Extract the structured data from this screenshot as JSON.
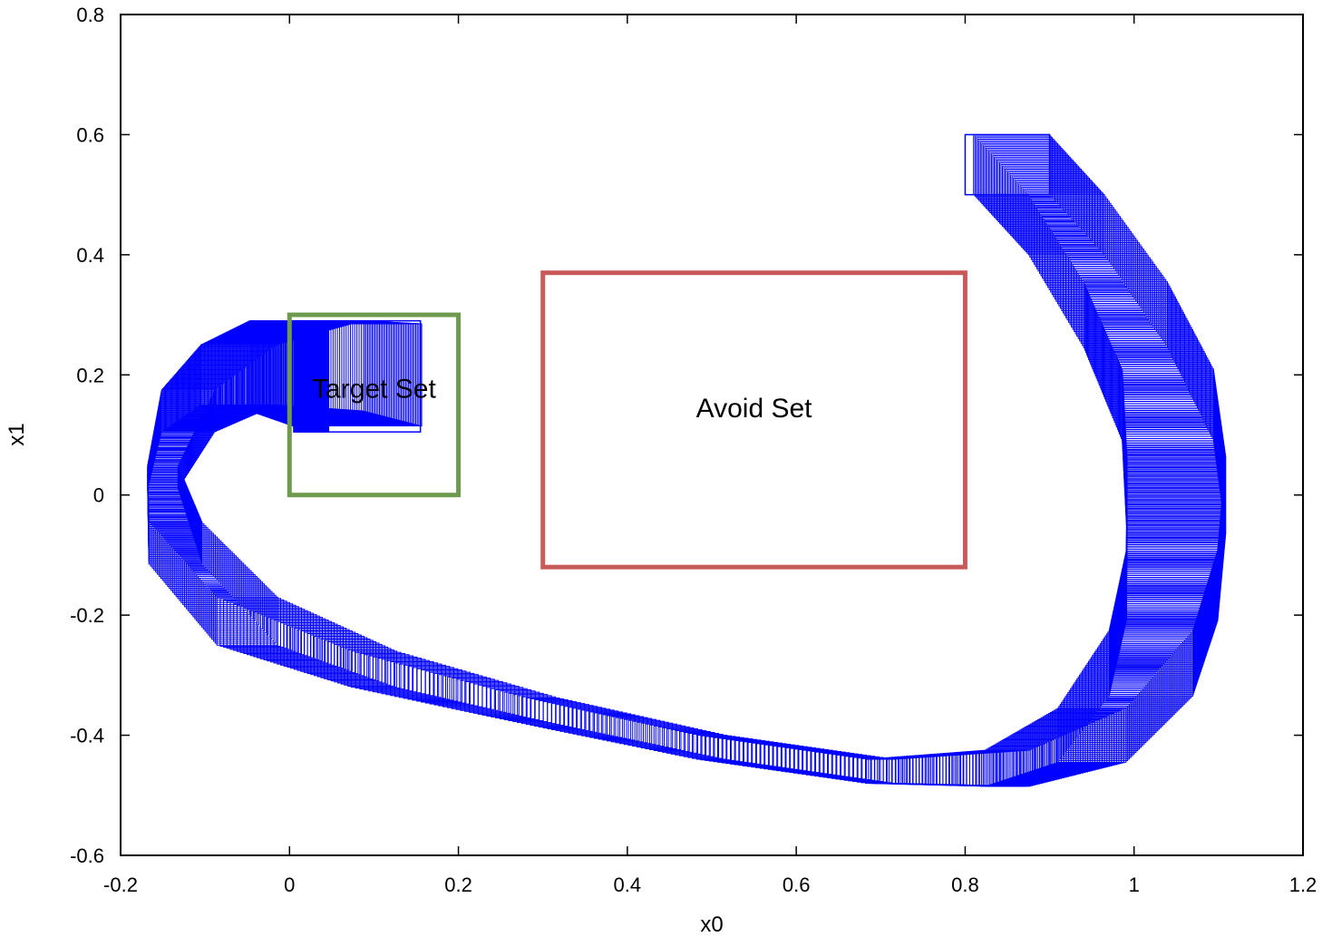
{
  "chart_data": {
    "type": "scatter",
    "title": "",
    "xlabel": "x0",
    "ylabel": "x1",
    "xlim": [
      -0.2,
      1.2
    ],
    "ylim": [
      -0.6,
      0.8
    ],
    "xticks": [
      -0.2,
      0,
      0.2,
      0.4,
      0.6,
      0.8,
      1,
      1.2
    ],
    "yticks": [
      -0.6,
      -0.4,
      -0.2,
      0,
      0.2,
      0.4,
      0.6,
      0.8
    ],
    "xtick_labels": [
      "-0.2",
      "0",
      "0.2",
      "0.4",
      "0.6",
      "0.8",
      "1",
      "1.2"
    ],
    "ytick_labels": [
      "-0.6",
      "-0.4",
      "-0.2",
      "0",
      "0.2",
      "0.4",
      "0.6",
      "0.8"
    ],
    "grid": false,
    "regions": [
      {
        "name": "Target Set",
        "label": "Target Set",
        "x0": 0.0,
        "x1": 0.2,
        "y0": 0.0,
        "y1": 0.3,
        "color": "#6d9a4c"
      },
      {
        "name": "Avoid Set",
        "label": "Avoid Set",
        "x0": 0.3,
        "x1": 0.8,
        "y0": -0.12,
        "y1": 0.37,
        "color": "#c85a5a"
      }
    ],
    "reach_tube": {
      "color": "#0000ff",
      "initial_box": {
        "x0": 0.8,
        "x1": 0.9,
        "y0": 0.5,
        "y1": 0.6
      },
      "final_box": {
        "x0": 0.005,
        "x1": 0.155,
        "y0": 0.105,
        "y1": 0.29
      },
      "center_path": [
        [
          0.855,
          0.55
        ],
        [
          0.92,
          0.45
        ],
        [
          0.99,
          0.3
        ],
        [
          1.04,
          0.15
        ],
        [
          1.05,
          0.0
        ],
        [
          1.045,
          -0.15
        ],
        [
          1.02,
          -0.28
        ],
        [
          0.95,
          -0.4
        ],
        [
          0.85,
          -0.455
        ],
        [
          0.7,
          -0.46
        ],
        [
          0.5,
          -0.42
        ],
        [
          0.3,
          -0.36
        ],
        [
          0.1,
          -0.29
        ],
        [
          -0.05,
          -0.21
        ],
        [
          -0.135,
          -0.08
        ],
        [
          -0.15,
          0.03
        ],
        [
          -0.12,
          0.14
        ],
        [
          -0.06,
          0.2
        ],
        [
          0.02,
          0.215
        ],
        [
          0.08,
          0.2
        ]
      ],
      "half_width_path": [
        0.05,
        0.05,
        0.055,
        0.06,
        0.065,
        0.06,
        0.055,
        0.045,
        0.03,
        0.02,
        0.02,
        0.022,
        0.03,
        0.04,
        0.035,
        0.02,
        0.035,
        0.05,
        0.075,
        0.085
      ]
    }
  }
}
